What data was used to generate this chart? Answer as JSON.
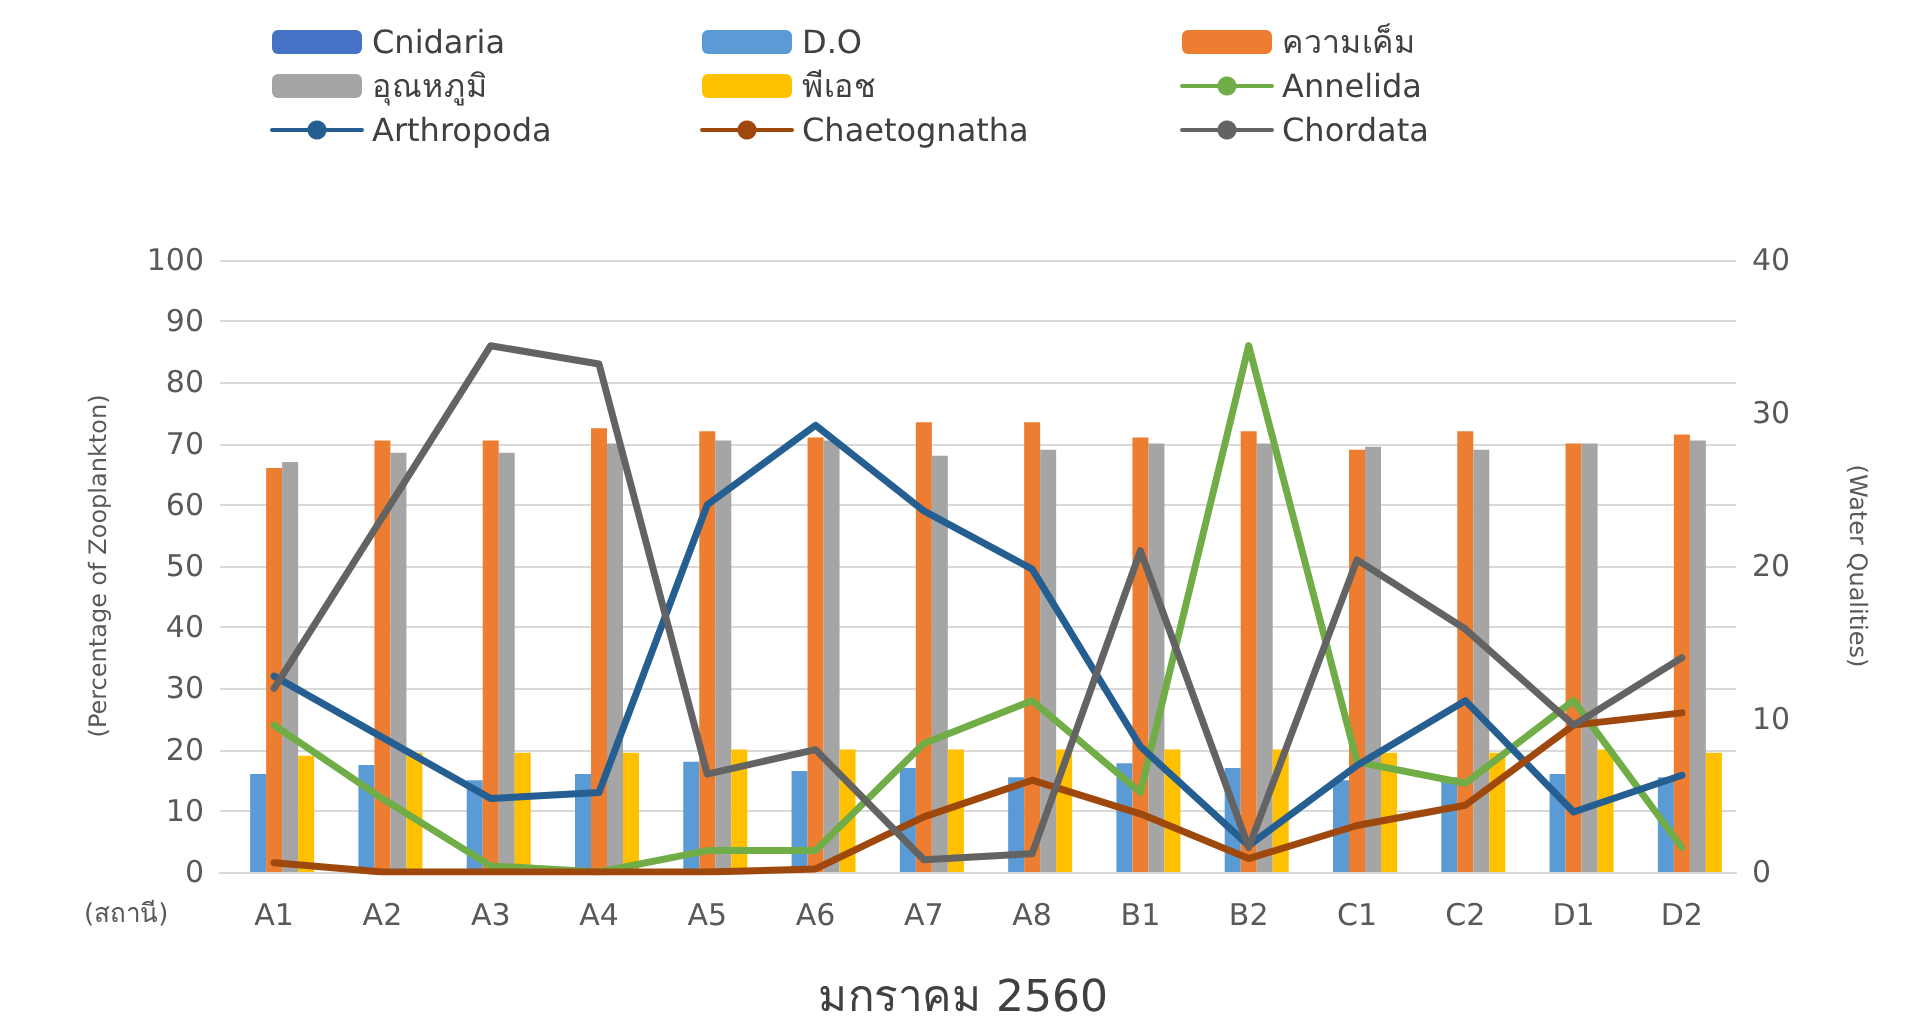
{
  "chart_data": {
    "type": "bar",
    "xlabel": "มกราคม 2560",
    "ylabel": "(Percentage of Zooplankton)",
    "y2label": "(Water Qualities)",
    "annotations": [
      "(สถานี)"
    ],
    "categories": [
      "A1",
      "A2",
      "A3",
      "A4",
      "A5",
      "A6",
      "A7",
      "A8",
      "B1",
      "B2",
      "C1",
      "C2",
      "D1",
      "D2"
    ],
    "series": [
      {
        "name": "Cnidaria",
        "color": "#4472c4",
        "axis": "y2",
        "values": [
          0,
          0,
          0,
          0,
          0,
          0,
          0,
          0,
          0,
          0,
          0,
          0,
          0,
          0
        ]
      },
      {
        "name": "D.O",
        "color": "#5b9bd5",
        "axis": "y2",
        "values": [
          6.4,
          7.0,
          6.0,
          6.4,
          7.2,
          6.6,
          6.8,
          6.2,
          7.1,
          6.8,
          6.0,
          6.2,
          6.4,
          6.2
        ]
      },
      {
        "name": "ความเค็ม",
        "color": "#ed7d31",
        "axis": "y2",
        "values": [
          26.4,
          28.2,
          28.2,
          29.0,
          28.8,
          28.4,
          29.4,
          29.4,
          28.4,
          28.8,
          27.6,
          28.8,
          28.0,
          28.6
        ]
      },
      {
        "name": "อุณหภูมิ",
        "color": "#a5a5a5",
        "axis": "y2",
        "values": [
          26.8,
          27.4,
          27.4,
          28.0,
          28.2,
          28.2,
          27.2,
          27.6,
          28.0,
          28.0,
          27.8,
          27.6,
          28.0,
          28.2
        ]
      },
      {
        "name": "พีเอช",
        "color": "#ffc000",
        "axis": "y2",
        "values": [
          7.6,
          7.8,
          7.8,
          7.8,
          8.0,
          8.0,
          8.0,
          8.0,
          8.0,
          8.0,
          7.8,
          7.8,
          8.0,
          7.8
        ]
      },
      {
        "name": "Annelida",
        "type": "line",
        "color": "#70ad47",
        "values": [
          24,
          12,
          1,
          0,
          3.5,
          3.5,
          21,
          28,
          13,
          86,
          18,
          14.5,
          28,
          4
        ]
      },
      {
        "name": "Arthropoda",
        "type": "line",
        "color": "#255e91",
        "values": [
          32,
          22,
          12,
          13,
          60,
          73,
          59,
          49.5,
          20.5,
          4.3,
          17.4,
          28,
          9.8,
          15.8
        ]
      },
      {
        "name": "Chaetognatha",
        "type": "line",
        "color": "#9e480e",
        "values": [
          1.5,
          0,
          0,
          0,
          0,
          0.5,
          9,
          15,
          9.5,
          2.2,
          7.6,
          10.9,
          24,
          26
        ]
      },
      {
        "name": "Chordata",
        "type": "line",
        "color": "#636363",
        "values": [
          30,
          58,
          86,
          83,
          16,
          20,
          2,
          3,
          52.5,
          4,
          51,
          39.7,
          24,
          35
        ]
      }
    ],
    "ylim": [
      0,
      100
    ],
    "yticks": [
      0,
      10,
      20,
      30,
      40,
      50,
      60,
      70,
      80,
      90,
      100
    ],
    "y2lim": [
      0,
      40
    ],
    "y2ticks": [
      0,
      10,
      20,
      30,
      40
    ],
    "grid": "y",
    "legend": "top",
    "marker": "none",
    "line_style": "solid"
  }
}
